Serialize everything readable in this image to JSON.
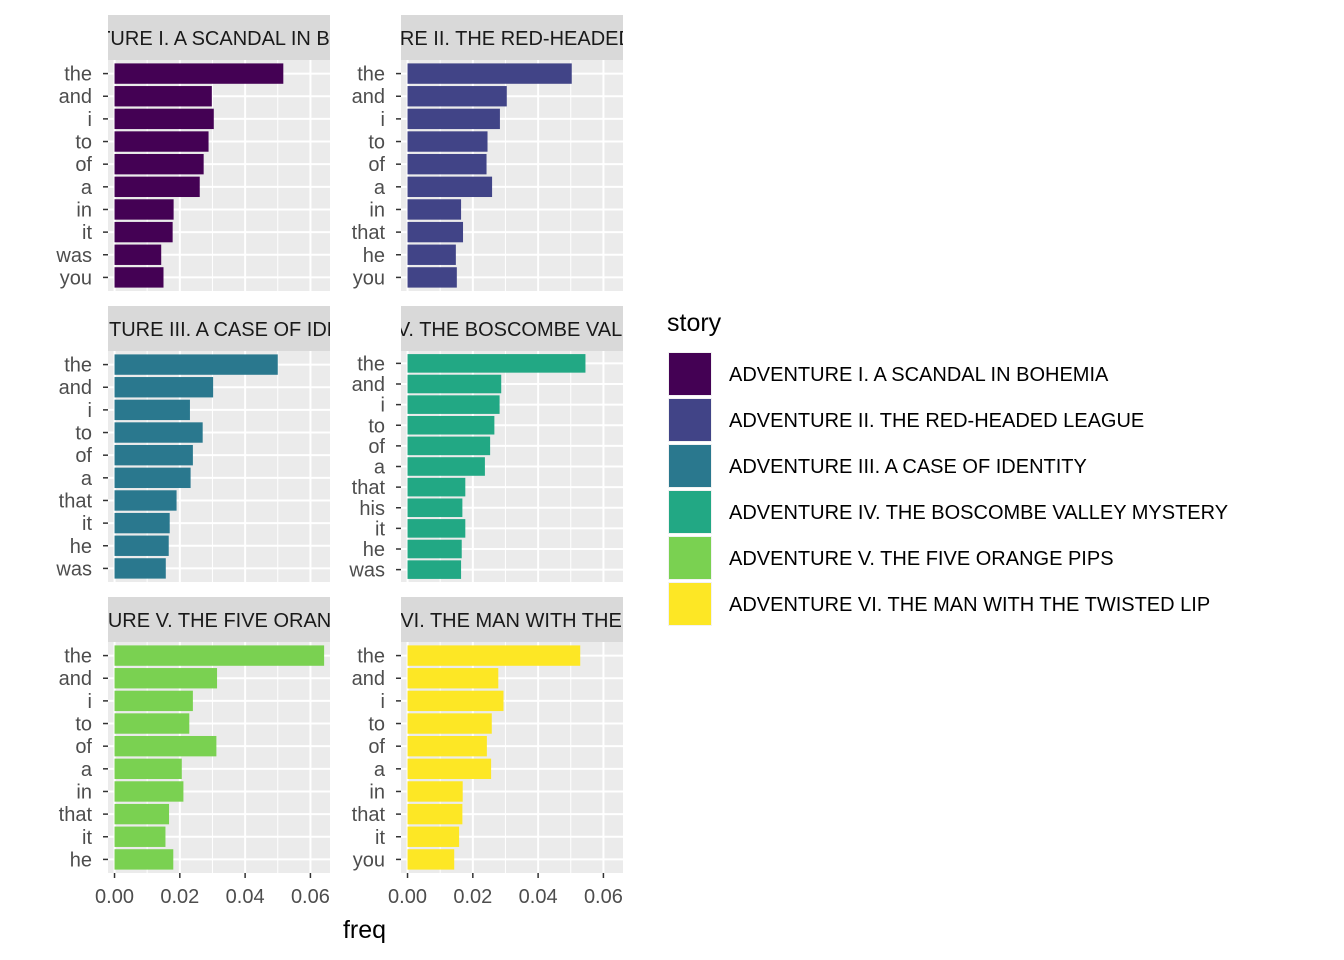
{
  "chart_data": {
    "type": "bar",
    "orientation": "horizontal",
    "facet_layout": "3x2",
    "x_label": "freq",
    "xlim": [
      -0.002,
      0.066
    ],
    "x_ticks": [
      0.0,
      0.02,
      0.04,
      0.06
    ],
    "x_tick_labels": [
      "0.00",
      "0.02",
      "0.04",
      "0.06"
    ],
    "grid": true,
    "legend": {
      "title": "story",
      "placement": "right",
      "entries": [
        {
          "label": "ADVENTURE I. A SCANDAL IN BOHEMIA",
          "color": "#440154"
        },
        {
          "label": "ADVENTURE II. THE RED-HEADED LEAGUE",
          "color": "#414487"
        },
        {
          "label": "ADVENTURE III. A CASE OF IDENTITY",
          "color": "#2A788E"
        },
        {
          "label": "ADVENTURE IV. THE BOSCOMBE VALLEY MYSTERY",
          "color": "#22A884"
        },
        {
          "label": "ADVENTURE V. THE FIVE ORANGE PIPS",
          "color": "#7AD151"
        },
        {
          "label": "ADVENTURE VI. THE MAN WITH THE TWISTED LIP",
          "color": "#FDE725"
        }
      ]
    },
    "panels": [
      {
        "strip": "ADVENTURE I. A SCANDAL IN BOHEMIA",
        "color": "#440154",
        "categories": [
          "the",
          "and",
          "i",
          "to",
          "of",
          "a",
          "in",
          "it",
          "was",
          "you"
        ],
        "values": [
          0.0517,
          0.0298,
          0.0304,
          0.0288,
          0.0273,
          0.0261,
          0.0181,
          0.0178,
          0.0143,
          0.015
        ]
      },
      {
        "strip": "ADVENTURE II. THE RED-HEADED LEAGUE",
        "color": "#414487",
        "categories": [
          "the",
          "and",
          "i",
          "to",
          "of",
          "a",
          "in",
          "that",
          "he",
          "you"
        ],
        "values": [
          0.0503,
          0.0304,
          0.0283,
          0.0245,
          0.0242,
          0.0259,
          0.0164,
          0.017,
          0.0148,
          0.0151
        ]
      },
      {
        "strip": "ADVENTURE III. A CASE OF IDENTITY",
        "color": "#2A788E",
        "categories": [
          "the",
          "and",
          "i",
          "to",
          "of",
          "a",
          "that",
          "it",
          "he",
          "was"
        ],
        "values": [
          0.05,
          0.0302,
          0.0231,
          0.027,
          0.024,
          0.0233,
          0.019,
          0.0169,
          0.0166,
          0.0157
        ]
      },
      {
        "strip": "ADVENTURE IV. THE BOSCOMBE VALLEY MYSTERY",
        "color": "#22A884",
        "categories": [
          "the",
          "and",
          "i",
          "to",
          "of",
          "a",
          "that",
          "his",
          "it",
          "he",
          "was"
        ],
        "values": [
          0.0545,
          0.0287,
          0.0282,
          0.0266,
          0.0253,
          0.0237,
          0.0177,
          0.0168,
          0.0177,
          0.0166,
          0.0164
        ]
      },
      {
        "strip": "ADVENTURE V. THE FIVE ORANGE PIPS",
        "color": "#7AD151",
        "categories": [
          "the",
          "and",
          "i",
          "to",
          "of",
          "a",
          "in",
          "that",
          "it",
          "he"
        ],
        "values": [
          0.0642,
          0.0314,
          0.024,
          0.0229,
          0.0312,
          0.0206,
          0.0211,
          0.0167,
          0.0156,
          0.018
        ]
      },
      {
        "strip": "ADVENTURE VI. THE MAN WITH THE TWISTED LIP",
        "color": "#FDE725",
        "categories": [
          "the",
          "and",
          "i",
          "to",
          "of",
          "a",
          "in",
          "that",
          "it",
          "you"
        ],
        "values": [
          0.0529,
          0.0278,
          0.0294,
          0.0258,
          0.0243,
          0.0256,
          0.0169,
          0.0168,
          0.0158,
          0.0143
        ]
      }
    ]
  }
}
